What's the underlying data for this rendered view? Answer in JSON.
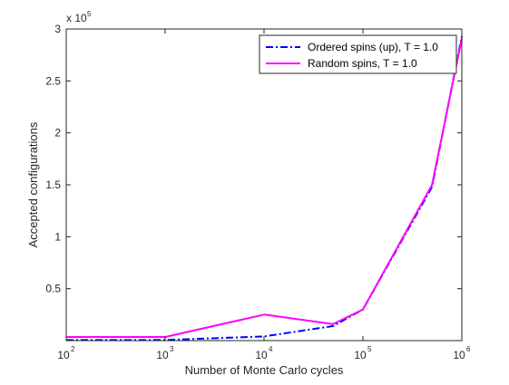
{
  "chart_data": {
    "type": "line",
    "title": "",
    "xlabel": "Number of Monte Carlo cycles",
    "ylabel": "Accepted configurations",
    "x_scale": "log",
    "xlim": [
      100,
      1000000
    ],
    "ylim": [
      0,
      300000
    ],
    "y_multiplier_label": "x 10",
    "y_multiplier_exponent": "5",
    "x_ticks": [
      {
        "base": "10",
        "exp": "2",
        "value": 100
      },
      {
        "base": "10",
        "exp": "3",
        "value": 1000
      },
      {
        "base": "10",
        "exp": "4",
        "value": 10000
      },
      {
        "base": "10",
        "exp": "5",
        "value": 100000
      },
      {
        "base": "10",
        "exp": "6",
        "value": 1000000
      }
    ],
    "y_ticks": [
      {
        "label": "0.5",
        "value": 50000
      },
      {
        "label": "1",
        "value": 100000
      },
      {
        "label": "1.5",
        "value": 150000
      },
      {
        "label": "2",
        "value": 200000
      },
      {
        "label": "2.5",
        "value": 250000
      },
      {
        "label": "3",
        "value": 300000
      }
    ],
    "grid": false,
    "legend_position": "top-right",
    "series": [
      {
        "name": "Ordered spins (up), T = 1.0",
        "color": "#0000ff",
        "line_style": "dash-dot",
        "x": [
          100,
          1000,
          10000,
          50000,
          100000,
          500000,
          1000000
        ],
        "y": [
          500,
          600,
          4000,
          14000,
          30000,
          148000,
          293000
        ]
      },
      {
        "name": "Random spins, T = 1.0",
        "color": "#ff00ff",
        "line_style": "solid",
        "x": [
          100,
          1000,
          10000,
          50000,
          100000,
          500000,
          1000000
        ],
        "y": [
          3500,
          3500,
          25000,
          16000,
          30000,
          150000,
          291000
        ]
      }
    ]
  }
}
